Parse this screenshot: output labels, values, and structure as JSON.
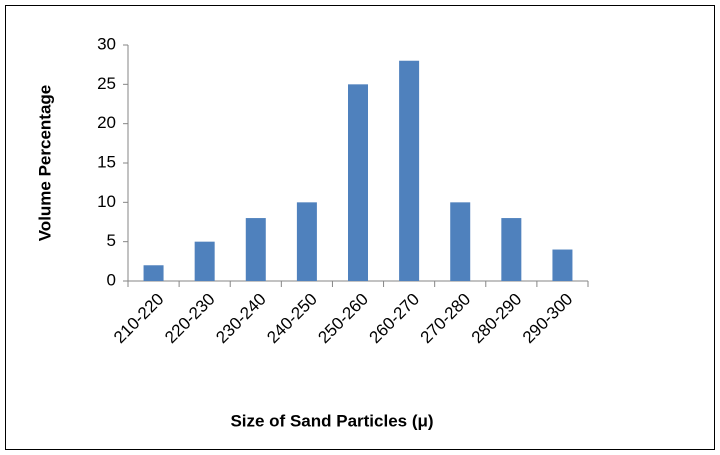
{
  "chart_data": {
    "type": "bar",
    "categories": [
      "210-220",
      "220-230",
      "230-240",
      "240-250",
      "250-260",
      "260-270",
      "270-280",
      "280-290",
      "290-300"
    ],
    "values": [
      2,
      5,
      8,
      10,
      25,
      28,
      10,
      8,
      4
    ],
    "color": "#4f81bd",
    "ylim": [
      0,
      30
    ],
    "yticks": [
      0,
      5,
      10,
      15,
      20,
      25,
      30
    ],
    "y_label": "Volume Percentage",
    "x_label": "Size of Sand Particles (μ)",
    "grid": false
  }
}
